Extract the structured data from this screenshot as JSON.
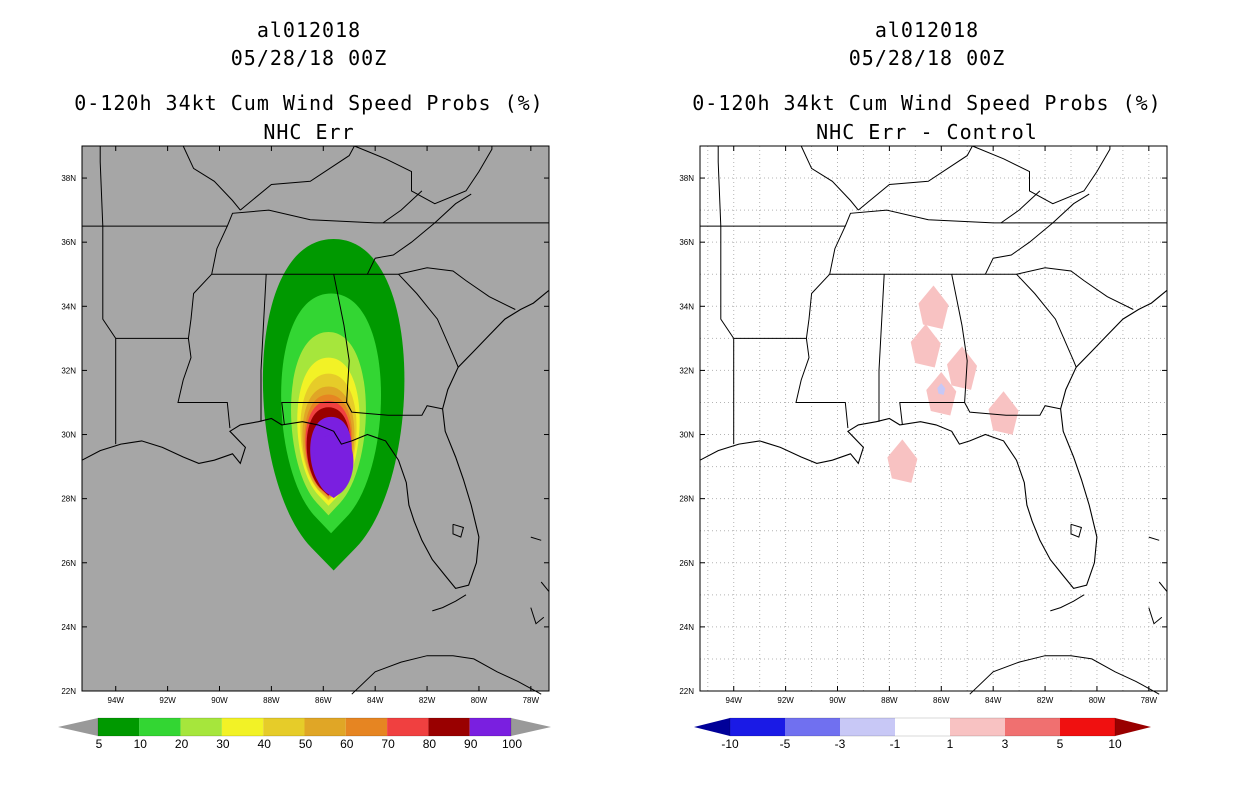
{
  "panels": [
    {
      "storm": "al012018",
      "datetime": "05/28/18 00Z",
      "product": "0-120h 34kt Cum Wind Speed Probs (%)",
      "subtitle": "NHC Err",
      "background": "#a6a6a6",
      "colorbar": {
        "labels": [
          "5",
          "10",
          "20",
          "30",
          "40",
          "50",
          "60",
          "70",
          "80",
          "90",
          "100"
        ],
        "colors": [
          "#009900",
          "#33d633",
          "#a6e63c",
          "#f2f226",
          "#e6cc29",
          "#e0a626",
          "#e68522",
          "#f04040",
          "#990000",
          "#7a1fe0"
        ],
        "end_color": "#999999"
      }
    },
    {
      "storm": "al012018",
      "datetime": "05/28/18 00Z",
      "product": "0-120h 34kt Cum Wind Speed Probs (%)",
      "subtitle": "NHC Err - Control",
      "background": "#ffffff",
      "colorbar": {
        "labels": [
          "-10",
          "-5",
          "-3",
          "-1",
          "1",
          "3",
          "5",
          "10"
        ],
        "colors": [
          "#1a1ae6",
          "#7070f0",
          "#c8c8f6",
          "#ffffff",
          "#f8c2c2",
          "#f07070",
          "#f01010"
        ],
        "low_color": "#000099",
        "high_color": "#990000"
      }
    }
  ],
  "map": {
    "lat_labels": [
      "38N",
      "36N",
      "34N",
      "32N",
      "30N",
      "28N",
      "26N",
      "24N",
      "22N"
    ],
    "lon_labels": [
      "94W",
      "92W",
      "90W",
      "88W",
      "86W",
      "84W",
      "82W",
      "80W",
      "78W"
    ]
  },
  "chart_data": {
    "type": "heatmap",
    "lon_range": [
      -95.3,
      -77.3
    ],
    "lat_range": [
      22,
      39
    ],
    "left_levels_pct": [
      5,
      10,
      20,
      30,
      40,
      50,
      60,
      70,
      80,
      90,
      100
    ],
    "left_contours": [
      {
        "level": 5,
        "lon": -85.6,
        "lat": 31.4,
        "rlon": 3.4,
        "rlat": 4.7
      },
      {
        "level": 10,
        "lon": -85.7,
        "lat": 31.0,
        "rlon": 2.4,
        "rlat": 3.4
      },
      {
        "level": 20,
        "lon": -85.8,
        "lat": 30.6,
        "rlon": 1.8,
        "rlat": 2.6
      },
      {
        "level": 30,
        "lon": -85.8,
        "lat": 30.3,
        "rlon": 1.5,
        "rlat": 2.1
      },
      {
        "level": 40,
        "lon": -85.8,
        "lat": 30.1,
        "rlon": 1.35,
        "rlat": 1.8
      },
      {
        "level": 50,
        "lon": -85.8,
        "lat": 29.9,
        "rlon": 1.25,
        "rlat": 1.6
      },
      {
        "level": 60,
        "lon": -85.8,
        "lat": 29.8,
        "rlon": 1.15,
        "rlat": 1.45
      },
      {
        "level": 70,
        "lon": -85.8,
        "lat": 29.7,
        "rlon": 1.1,
        "rlat": 1.35
      },
      {
        "level": 80,
        "lon": -85.8,
        "lat": 29.6,
        "rlon": 1.05,
        "rlat": 1.25
      },
      {
        "level": 90,
        "lon": -85.7,
        "lat": 29.45,
        "rlon": 1.0,
        "rlat": 1.1
      },
      {
        "level": 100,
        "lon": -85.6,
        "lat": 29.1,
        "rlon": 0.95,
        "rlat": 0.9
      }
    ],
    "right_levels": [
      -10,
      -5,
      -3,
      -1,
      1,
      3,
      5,
      10
    ],
    "right_patches": [
      {
        "level": 1,
        "lon": -86.3,
        "lat": 33.9
      },
      {
        "level": 1,
        "lon": -86.6,
        "lat": 32.7
      },
      {
        "level": 1,
        "lon": -85.2,
        "lat": 32.0
      },
      {
        "level": 1,
        "lon": -86.0,
        "lat": 31.2
      },
      {
        "level": 1,
        "lon": -83.6,
        "lat": 30.6
      },
      {
        "level": 1,
        "lon": -87.5,
        "lat": 29.1
      },
      {
        "level": -1,
        "lon": -86.0,
        "lat": 31.4
      }
    ]
  }
}
